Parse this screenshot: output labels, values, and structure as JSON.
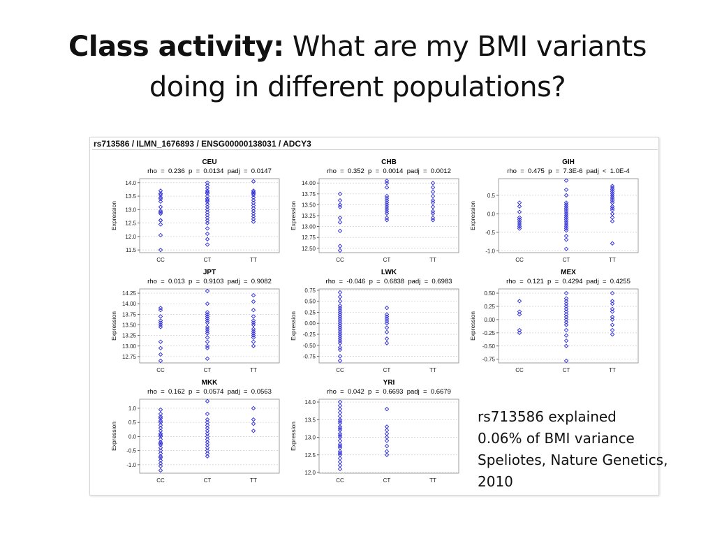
{
  "slide": {
    "title_bold": "Class activity:",
    "title_rest": " What are my BMI variants",
    "title_line2": "doing in different populations?"
  },
  "figure": {
    "header": "rs713586 / ILMN_1676893 / ENSG00000138031 / ADCY3"
  },
  "note": {
    "line1": "rs713586 explained",
    "line2": "0.06% of BMI variance",
    "line3": "Speliotes, Nature Genetics,",
    "line4": "2010"
  },
  "chart_data": [
    {
      "type": "scatter",
      "title": "CEU",
      "stats": "rho = 0.236   p = 0.0134   padj = 0.0147",
      "ylabel": "Expression",
      "categories": [
        "CC",
        "CT",
        "TT"
      ],
      "ylim": [
        11.4,
        14.15
      ],
      "yticks": [
        11.5,
        12.0,
        12.5,
        13.0,
        13.5,
        14.0
      ],
      "ytick_labels": [
        "11.5",
        "12.0",
        "12.5",
        "13.0",
        "13.5",
        "14.0"
      ],
      "points": {
        "CC": [
          11.5,
          12.05,
          12.45,
          12.6,
          12.6,
          12.85,
          12.9,
          12.95,
          13.1,
          13.3,
          13.4,
          13.45,
          13.55,
          13.6,
          13.7
        ],
        "CT": [
          11.7,
          11.9,
          12.1,
          12.3,
          12.5,
          12.6,
          12.7,
          12.8,
          12.9,
          13.0,
          13.1,
          13.2,
          13.3,
          13.35,
          13.4,
          13.5,
          13.6,
          13.65,
          13.7,
          13.8,
          13.9,
          14.0
        ],
        "TT": [
          12.55,
          12.65,
          12.75,
          12.85,
          12.95,
          13.05,
          13.15,
          13.25,
          13.35,
          13.45,
          13.55,
          13.6,
          13.65,
          13.7,
          14.05
        ]
      }
    },
    {
      "type": "scatter",
      "title": "CHB",
      "stats": "rho = 0.352   p = 0.0014   padj = 0.0012",
      "ylabel": "Expression",
      "categories": [
        "CC",
        "CT",
        "TT"
      ],
      "ylim": [
        12.4,
        14.1
      ],
      "yticks": [
        12.5,
        12.75,
        13.0,
        13.25,
        13.5,
        13.75,
        14.0
      ],
      "ytick_labels": [
        "12.50",
        "12.75",
        "13.00",
        "13.25",
        "13.50",
        "13.75",
        "14.00"
      ],
      "points": {
        "CC": [
          12.45,
          12.55,
          12.9,
          13.1,
          13.2,
          13.45,
          13.5,
          13.6,
          13.75
        ],
        "CT": [
          13.15,
          13.2,
          13.3,
          13.35,
          13.4,
          13.45,
          13.5,
          13.55,
          13.6,
          13.65,
          13.7,
          13.9,
          14.0,
          14.05
        ],
        "TT": [
          13.15,
          13.2,
          13.3,
          13.35,
          13.45,
          13.55,
          13.6,
          13.7,
          13.8,
          13.9,
          14.0
        ]
      }
    },
    {
      "type": "scatter",
      "title": "GIH",
      "stats": "rho = 0.475   p = 7.3E-6   padj < 1.0E-4",
      "ylabel": "Expression",
      "categories": [
        "CC",
        "CT",
        "TT"
      ],
      "ylim": [
        -1.05,
        0.95
      ],
      "yticks": [
        -1.0,
        -0.5,
        0.0,
        0.5
      ],
      "ytick_labels": [
        "-1.0",
        "-0.5",
        "0.0",
        "0.5"
      ],
      "points": {
        "CC": [
          -0.4,
          -0.35,
          -0.3,
          -0.25,
          -0.2,
          -0.15,
          -0.1,
          0.05,
          0.2,
          0.3
        ],
        "CT": [
          -0.95,
          -0.7,
          -0.6,
          -0.45,
          -0.4,
          -0.35,
          -0.3,
          -0.25,
          -0.2,
          -0.15,
          -0.1,
          -0.05,
          0.0,
          0.05,
          0.1,
          0.15,
          0.2,
          0.25,
          0.3,
          0.5,
          0.65,
          0.9
        ],
        "TT": [
          -0.8,
          -0.2,
          -0.1,
          0.0,
          0.1,
          0.15,
          0.2,
          0.3,
          0.35,
          0.4,
          0.45,
          0.5,
          0.55,
          0.6,
          0.65,
          0.7,
          0.75
        ]
      }
    },
    {
      "type": "scatter",
      "title": "JPT",
      "stats": "rho = 0.013   p = 0.9103   padj = 0.9082",
      "ylabel": "Expression",
      "categories": [
        "CC",
        "CT",
        "TT"
      ],
      "ylim": [
        12.6,
        14.35
      ],
      "yticks": [
        12.75,
        13.0,
        13.25,
        13.5,
        13.75,
        14.0,
        14.25
      ],
      "ytick_labels": [
        "12.75",
        "13.00",
        "13.25",
        "13.50",
        "13.75",
        "14.00",
        "14.25"
      ],
      "points": {
        "CC": [
          12.65,
          12.8,
          12.95,
          13.1,
          13.45,
          13.5,
          13.55,
          13.6,
          13.7,
          13.85,
          13.9
        ],
        "CT": [
          12.7,
          12.95,
          13.0,
          13.1,
          13.2,
          13.3,
          13.35,
          13.4,
          13.45,
          13.55,
          13.6,
          13.65,
          13.7,
          13.75,
          13.8,
          14.0,
          14.3
        ],
        "TT": [
          13.0,
          13.1,
          13.2,
          13.25,
          13.3,
          13.35,
          13.4,
          13.5,
          13.55,
          13.6,
          13.7,
          13.85,
          14.05,
          14.2
        ]
      }
    },
    {
      "type": "scatter",
      "title": "LWK",
      "stats": "rho = -0.046   p = 0.6838   padj = 0.6983",
      "ylabel": "Expression",
      "categories": [
        "CC",
        "CT",
        "TT"
      ],
      "ylim": [
        -0.9,
        0.78
      ],
      "yticks": [
        -0.75,
        -0.5,
        -0.25,
        0.0,
        0.25,
        0.5,
        0.75
      ],
      "ytick_labels": [
        "-0.75",
        "-0.50",
        "-0.25",
        "0.00",
        "0.25",
        "0.50",
        "0.75"
      ],
      "points": {
        "CC": [
          -0.85,
          -0.75,
          -0.6,
          -0.55,
          -0.45,
          -0.4,
          -0.35,
          -0.3,
          -0.25,
          -0.2,
          -0.15,
          -0.1,
          -0.05,
          0.0,
          0.05,
          0.1,
          0.15,
          0.2,
          0.25,
          0.3,
          0.35,
          0.4,
          0.5,
          0.6,
          0.7
        ],
        "CT": [
          -0.45,
          -0.35,
          -0.2,
          -0.1,
          0.0,
          0.05,
          0.1,
          0.15,
          0.2,
          0.35
        ],
        "TT": []
      }
    },
    {
      "type": "scatter",
      "title": "MEX",
      "stats": "rho = 0.121   p = 0.4294   padj = 0.4255",
      "ylabel": "Expression",
      "categories": [
        "CC",
        "CT",
        "TT"
      ],
      "ylim": [
        -0.82,
        0.58
      ],
      "yticks": [
        -0.75,
        -0.5,
        -0.25,
        0.0,
        0.25,
        0.5
      ],
      "ytick_labels": [
        "-0.75",
        "-0.50",
        "-0.25",
        "0.00",
        "0.25",
        "0.50"
      ],
      "points": {
        "CC": [
          -0.25,
          -0.2,
          0.1,
          0.15,
          0.35
        ],
        "CT": [
          -0.78,
          -0.5,
          -0.4,
          -0.3,
          -0.2,
          -0.1,
          -0.05,
          0.0,
          0.05,
          0.1,
          0.15,
          0.2,
          0.25,
          0.3,
          0.35,
          0.4,
          0.5
        ],
        "TT": [
          -0.28,
          -0.2,
          -0.1,
          0.0,
          0.05,
          0.15,
          0.2,
          0.3,
          0.35,
          0.5
        ]
      }
    },
    {
      "type": "scatter",
      "title": "MKK",
      "stats": "rho = 0.162   p = 0.0574   padj = 0.0563",
      "ylabel": "Expression",
      "categories": [
        "CC",
        "CT",
        "TT"
      ],
      "ylim": [
        -1.3,
        1.32
      ],
      "yticks": [
        -1.0,
        -0.5,
        0.0,
        0.5,
        1.0
      ],
      "ytick_labels": [
        "-1.0",
        "-0.5",
        "0.0",
        "0.5",
        "1.0"
      ],
      "points": {
        "CC": [
          -1.2,
          -1.05,
          -0.95,
          -0.85,
          -0.75,
          -0.7,
          -0.6,
          -0.5,
          -0.4,
          -0.3,
          -0.25,
          -0.2,
          -0.1,
          0.0,
          0.05,
          0.1,
          0.2,
          0.3,
          0.4,
          0.5,
          0.55,
          0.65,
          0.7,
          0.8,
          0.95
        ],
        "CT": [
          -0.7,
          -0.6,
          -0.5,
          -0.4,
          -0.3,
          -0.2,
          -0.1,
          0.0,
          0.1,
          0.2,
          0.3,
          0.4,
          0.5,
          0.6,
          0.8,
          1.25
        ],
        "TT": [
          0.2,
          0.45,
          0.6,
          1.0
        ]
      }
    },
    {
      "type": "scatter",
      "title": "YRI",
      "stats": "rho = 0.042   p = 0.6693   padj = 0.6679",
      "ylabel": "Expression",
      "categories": [
        "CC",
        "CT",
        "TT"
      ],
      "ylim": [
        11.98,
        14.08
      ],
      "yticks": [
        12.0,
        12.5,
        13.0,
        13.5,
        14.0
      ],
      "ytick_labels": [
        "12.0",
        "12.5",
        "13.0",
        "13.5",
        "14.0"
      ],
      "points": {
        "CC": [
          12.1,
          12.2,
          12.3,
          12.4,
          12.5,
          12.55,
          12.6,
          12.7,
          12.75,
          12.8,
          12.9,
          13.0,
          13.05,
          13.1,
          13.2,
          13.25,
          13.3,
          13.4,
          13.45,
          13.5,
          13.6,
          13.7,
          13.8,
          13.9,
          14.0
        ],
        "CT": [
          12.5,
          12.6,
          12.75,
          12.9,
          13.0,
          13.1,
          13.2,
          13.3,
          13.8
        ],
        "TT": []
      }
    }
  ]
}
